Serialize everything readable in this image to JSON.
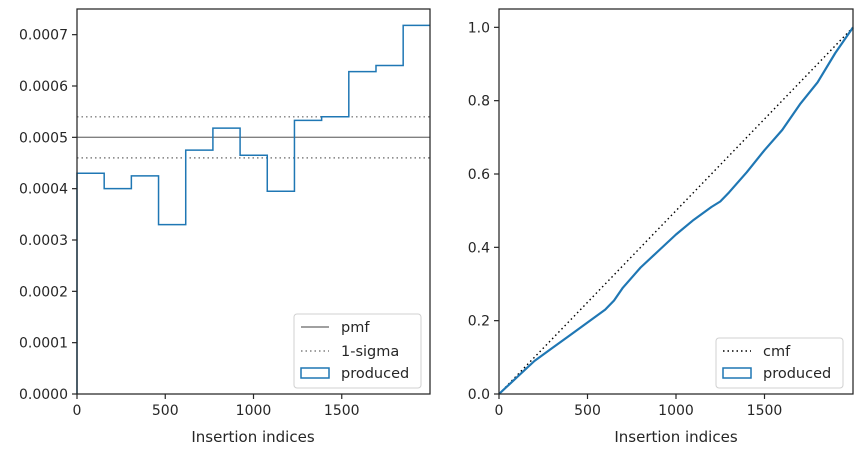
{
  "chart_data": [
    {
      "type": "step",
      "xlabel": "Insertion indices",
      "ylabel": "",
      "xlim": [
        0,
        2000
      ],
      "ylim": [
        0,
        0.00075
      ],
      "x_ticks": [
        {
          "value": 0,
          "label": "0"
        },
        {
          "value": 500,
          "label": "500"
        },
        {
          "value": 1000,
          "label": "1000"
        },
        {
          "value": 1500,
          "label": "1500"
        }
      ],
      "y_ticks": [
        {
          "value": 0,
          "label": "0.0000"
        },
        {
          "value": 0.0001,
          "label": "0.0001"
        },
        {
          "value": 0.0002,
          "label": "0.0002"
        },
        {
          "value": 0.0003,
          "label": "0.0003"
        },
        {
          "value": 0.0004,
          "label": "0.0004"
        },
        {
          "value": 0.0005,
          "label": "0.0005"
        },
        {
          "value": 0.0006,
          "label": "0.0006"
        },
        {
          "value": 0.0007,
          "label": "0.0007"
        }
      ],
      "pmf": {
        "name": "pmf",
        "value": 0.0005,
        "color": "#808080"
      },
      "sigma": {
        "name": "1-sigma",
        "values": [
          0.00054,
          0.00046
        ],
        "color": "#808080"
      },
      "produced": {
        "name": "produced",
        "color": "#1f77b4",
        "bin_edges": [
          0,
          154,
          308,
          462,
          616,
          770,
          924,
          1078,
          1232,
          1386,
          1540,
          1694,
          1848,
          2000
        ],
        "values": [
          0.00043,
          0.0004,
          0.000425,
          0.00033,
          0.000475,
          0.000518,
          0.000465,
          0.000395,
          0.000533,
          0.00054,
          0.000628,
          0.00064,
          0.000718
        ]
      },
      "legend": {
        "position": "lower right",
        "entries": [
          "pmf",
          "1-sigma",
          "produced"
        ]
      },
      "grid": false
    },
    {
      "type": "line",
      "xlabel": "Insertion indices",
      "ylabel": "",
      "xlim": [
        0,
        2000
      ],
      "ylim": [
        0,
        1.05
      ],
      "x_ticks": [
        {
          "value": 0,
          "label": "0"
        },
        {
          "value": 500,
          "label": "500"
        },
        {
          "value": 1000,
          "label": "1000"
        },
        {
          "value": 1500,
          "label": "1500"
        }
      ],
      "y_ticks": [
        {
          "value": 0,
          "label": "0.0"
        },
        {
          "value": 0.2,
          "label": "0.2"
        },
        {
          "value": 0.4,
          "label": "0.4"
        },
        {
          "value": 0.6,
          "label": "0.6"
        },
        {
          "value": 0.8,
          "label": "0.8"
        },
        {
          "value": 1.0,
          "label": "1.0"
        }
      ],
      "cmf": {
        "name": "cmf",
        "x": [
          0,
          2000
        ],
        "y": [
          0,
          1.0
        ],
        "color": "#000000"
      },
      "produced": {
        "name": "produced",
        "color": "#1f77b4",
        "x": [
          0,
          100,
          200,
          300,
          400,
          500,
          600,
          650,
          700,
          800,
          900,
          1000,
          1100,
          1200,
          1250,
          1300,
          1400,
          1500,
          1600,
          1700,
          1800,
          1900,
          2000
        ],
        "y": [
          0,
          0.045,
          0.09,
          0.125,
          0.16,
          0.195,
          0.23,
          0.255,
          0.29,
          0.345,
          0.39,
          0.435,
          0.475,
          0.51,
          0.525,
          0.55,
          0.605,
          0.665,
          0.72,
          0.79,
          0.85,
          0.93,
          1.0
        ]
      },
      "legend": {
        "position": "lower right",
        "entries": [
          "cmf",
          "produced"
        ]
      },
      "grid": false
    }
  ]
}
